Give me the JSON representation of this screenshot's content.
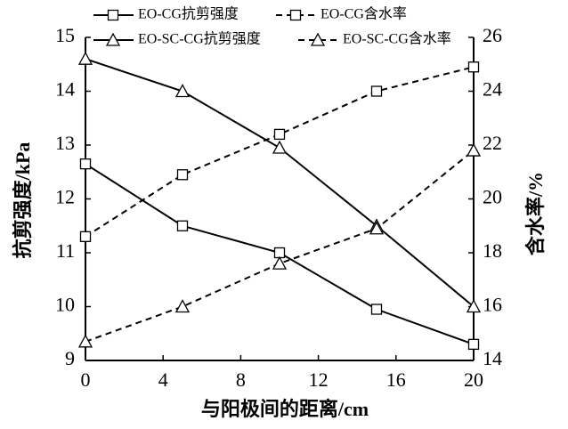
{
  "chart_data": {
    "type": "line",
    "x_label": "与阳极间的距离/cm",
    "y_label": "抗剪强度/kPa",
    "y2_label": "含水率/%",
    "x": [
      0,
      5,
      10,
      15,
      20
    ],
    "xlim": [
      0,
      20
    ],
    "xticks": [
      0,
      4,
      8,
      12,
      16,
      20
    ],
    "ylim": [
      9,
      15
    ],
    "yticks": [
      9,
      10,
      11,
      12,
      13,
      14,
      15
    ],
    "y2lim": [
      14,
      26
    ],
    "y2ticks": [
      14,
      16,
      18,
      20,
      22,
      24,
      26
    ],
    "series": [
      {
        "name": "EO-CG抗剪强度",
        "color": "#000000",
        "marker": "square",
        "dashed": false,
        "values": [
          12.65,
          11.5,
          11.0,
          9.95,
          9.3
        ]
      },
      {
        "name": "EO-CG含水率",
        "color": "#000000",
        "marker": "square",
        "dashed": true,
        "axis": "y2",
        "values": [
          18.6,
          20.9,
          22.4,
          24.0,
          24.9
        ]
      },
      {
        "name": "EO-SC-CG抗剪强度",
        "color": "#000000",
        "marker": "triangle",
        "dashed": false,
        "values": [
          14.6,
          14.0,
          12.95,
          11.5,
          10.0
        ]
      },
      {
        "name": "EO-SC-CG含水率",
        "color": "#000000",
        "marker": "triangle",
        "dashed": true,
        "axis": "y2",
        "values": [
          14.7,
          16.0,
          17.6,
          18.9,
          21.8
        ]
      }
    ]
  }
}
